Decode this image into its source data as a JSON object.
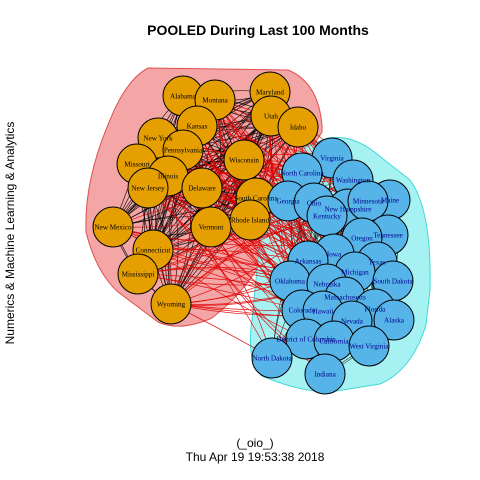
{
  "figure": {
    "title": "POOLED During Last 100 Months",
    "ylabel": "Numerics & Machine Learning & Analytics",
    "footer_line1": "(_oio_)",
    "footer_line2": "Thu Apr 19 19:53:38 2018"
  },
  "colors": {
    "group1_fill": "#e69f00",
    "group1_hull": "#f4a6a6",
    "group1_hull_stroke": "#e05050",
    "group2_fill": "#56b4e9",
    "group2_hull": "#a6f2f2",
    "group2_hull_stroke": "#40d8d8",
    "intra_edge": "#000000",
    "cross_edge": "#e00000",
    "label_group1": "#000000",
    "label_group2": "#00008b"
  },
  "chart_data": {
    "type": "network",
    "groups": [
      {
        "id": 1,
        "color": "orange",
        "nodes": [
          "Alabama",
          "Montana",
          "Maryland",
          "Utah",
          "Kansas",
          "Idaho",
          "New York",
          "Pennsylvania",
          "Missouri",
          "Illinois",
          "Wisconsin",
          "New Jersey",
          "Delaware",
          "South Carolina",
          "New Mexico",
          "Vermont",
          "Rhode Island",
          "Connecticut",
          "Mississippi",
          "Wyoming"
        ]
      },
      {
        "id": 2,
        "color": "blue",
        "nodes": [
          "Virginia",
          "North Carolina",
          "Washington",
          "Georgia",
          "Ohio",
          "Maine",
          "New Hampshire",
          "Minnesota",
          "Kentucky",
          "Tennessee",
          "Oregon",
          "Iowa",
          "Arkansas",
          "Texas",
          "Oklahoma",
          "Michigan",
          "South Dakota",
          "Nebraska",
          "Massachusetts",
          "Florida",
          "Colorado",
          "Hawaii",
          "Nevada",
          "Alaska",
          "District of Columbia",
          "California",
          "West Virginia",
          "North Dakota",
          "Indiana"
        ]
      }
    ]
  }
}
